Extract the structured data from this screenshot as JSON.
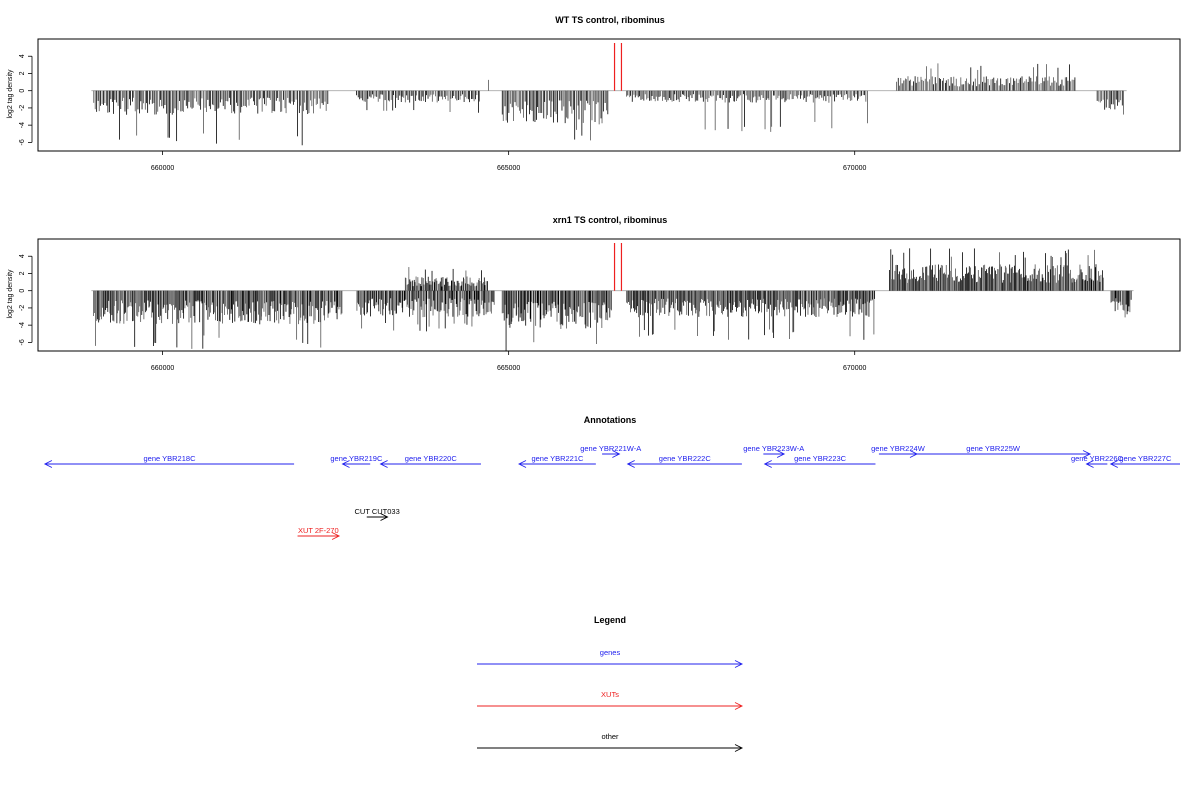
{
  "chart_data": [
    {
      "type": "bar",
      "title": "WT TS control, ribominus",
      "ylabel": "log2 tag density",
      "xlim": [
        658200,
        674700
      ],
      "ylim": [
        -7,
        6
      ],
      "x_ticks": [
        "660000",
        "665000",
        "670000"
      ],
      "y_ticks": [
        "4",
        "2",
        "0",
        "-2",
        "-4",
        "-6"
      ],
      "marker_positions": [
        666530,
        666630
      ],
      "segments": [
        {
          "start": 659000,
          "end": 662400,
          "sign": -1,
          "mean": -2.0,
          "peak": -6.4
        },
        {
          "start": 662800,
          "end": 664600,
          "sign": -1,
          "mean": -1.0,
          "peak": -2.6
        },
        {
          "start": 664700,
          "end": 664700,
          "sign": 1,
          "mean": 1.5,
          "peak": 1.5
        },
        {
          "start": 664900,
          "end": 666450,
          "sign": -1,
          "mean": -2.8,
          "peak": -6.0
        },
        {
          "start": 666700,
          "end": 670200,
          "sign": -1,
          "mean": -1.0,
          "peak": -4.8
        },
        {
          "start": 670600,
          "end": 673200,
          "sign": 1,
          "mean": 1.2,
          "peak": 3.2
        },
        {
          "start": 673500,
          "end": 673900,
          "sign": -1,
          "mean": -1.6,
          "peak": -2.8
        }
      ]
    },
    {
      "type": "bar",
      "title": "xrn1 TS control, ribominus",
      "ylabel": "log2 tag density",
      "xlim": [
        658200,
        674700
      ],
      "ylim": [
        -7,
        6
      ],
      "x_ticks": [
        "660000",
        "665000",
        "670000"
      ],
      "y_ticks": [
        "4",
        "2",
        "0",
        "-2",
        "-4",
        "-6"
      ],
      "marker_positions": [
        666530,
        666630
      ],
      "segments": [
        {
          "start": 659000,
          "end": 662600,
          "sign": -1,
          "mean": -2.8,
          "peak": -6.9
        },
        {
          "start": 662800,
          "end": 664800,
          "sign": -1,
          "mean": -2.2,
          "peak": -4.8
        },
        {
          "start": 663500,
          "end": 664700,
          "sign": 1,
          "mean": 1.2,
          "peak": 2.8
        },
        {
          "start": 664900,
          "end": 666500,
          "sign": -1,
          "mean": -3.2,
          "peak": -7.0
        },
        {
          "start": 666700,
          "end": 670300,
          "sign": -1,
          "mean": -2.2,
          "peak": -5.8
        },
        {
          "start": 670500,
          "end": 673600,
          "sign": 1,
          "mean": 2.2,
          "peak": 5.0
        },
        {
          "start": 673700,
          "end": 674000,
          "sign": -1,
          "mean": -2.0,
          "peak": -3.5
        }
      ]
    }
  ],
  "annotations": {
    "title": "Annotations",
    "features": [
      {
        "label": "gene YBR218C",
        "start": 658300,
        "end": 661900,
        "dir": "left",
        "type": "gene",
        "row": 0
      },
      {
        "label": "gene YBR219C",
        "start": 662600,
        "end": 663000,
        "dir": "left",
        "type": "gene",
        "row": 0
      },
      {
        "label": "gene YBR220C",
        "start": 663150,
        "end": 664600,
        "dir": "left",
        "type": "gene",
        "row": 0
      },
      {
        "label": "gene YBR221C",
        "start": 665150,
        "end": 666260,
        "dir": "left",
        "type": "gene",
        "row": 0
      },
      {
        "label": "gene YBR221W-A",
        "start": 666350,
        "end": 666600,
        "dir": "right",
        "type": "gene",
        "row": 1
      },
      {
        "label": "gene YBR222C",
        "start": 666720,
        "end": 668370,
        "dir": "left",
        "type": "gene",
        "row": 0
      },
      {
        "label": "gene YBR223W-A",
        "start": 668680,
        "end": 668980,
        "dir": "right",
        "type": "gene",
        "row": 1
      },
      {
        "label": "gene YBR223C",
        "start": 668700,
        "end": 670300,
        "dir": "left",
        "type": "gene",
        "row": 0
      },
      {
        "label": "gene YBR224W",
        "start": 670350,
        "end": 670900,
        "dir": "right",
        "type": "gene",
        "row": 1
      },
      {
        "label": "gene YBR225W",
        "start": 670600,
        "end": 673400,
        "dir": "right",
        "type": "gene",
        "row": 1
      },
      {
        "label": "gene YBR226C",
        "start": 673350,
        "end": 673650,
        "dir": "left",
        "type": "gene",
        "row": 0
      },
      {
        "label": "gene YBR227C",
        "start": 673700,
        "end": 674700,
        "dir": "left",
        "type": "gene",
        "row": 0
      },
      {
        "label": "CUT CUT033",
        "start": 662950,
        "end": 663250,
        "dir": "right",
        "type": "other",
        "row": 2
      },
      {
        "label": "XUT 2F-270",
        "start": 661950,
        "end": 662550,
        "dir": "right",
        "type": "xut",
        "row": 3
      }
    ]
  },
  "legend": {
    "title": "Legend",
    "items": [
      {
        "label": "genes",
        "type": "gene"
      },
      {
        "label": "XUTs",
        "type": "xut"
      },
      {
        "label": "other",
        "type": "other"
      }
    ]
  },
  "colors": {
    "gene": "#2020ee",
    "xut": "#ee2020",
    "other": "#000000",
    "bar_dark": "#000000",
    "bar_light": "#555555",
    "marker": "#ee2020",
    "baseline": "#aaaaaa"
  }
}
